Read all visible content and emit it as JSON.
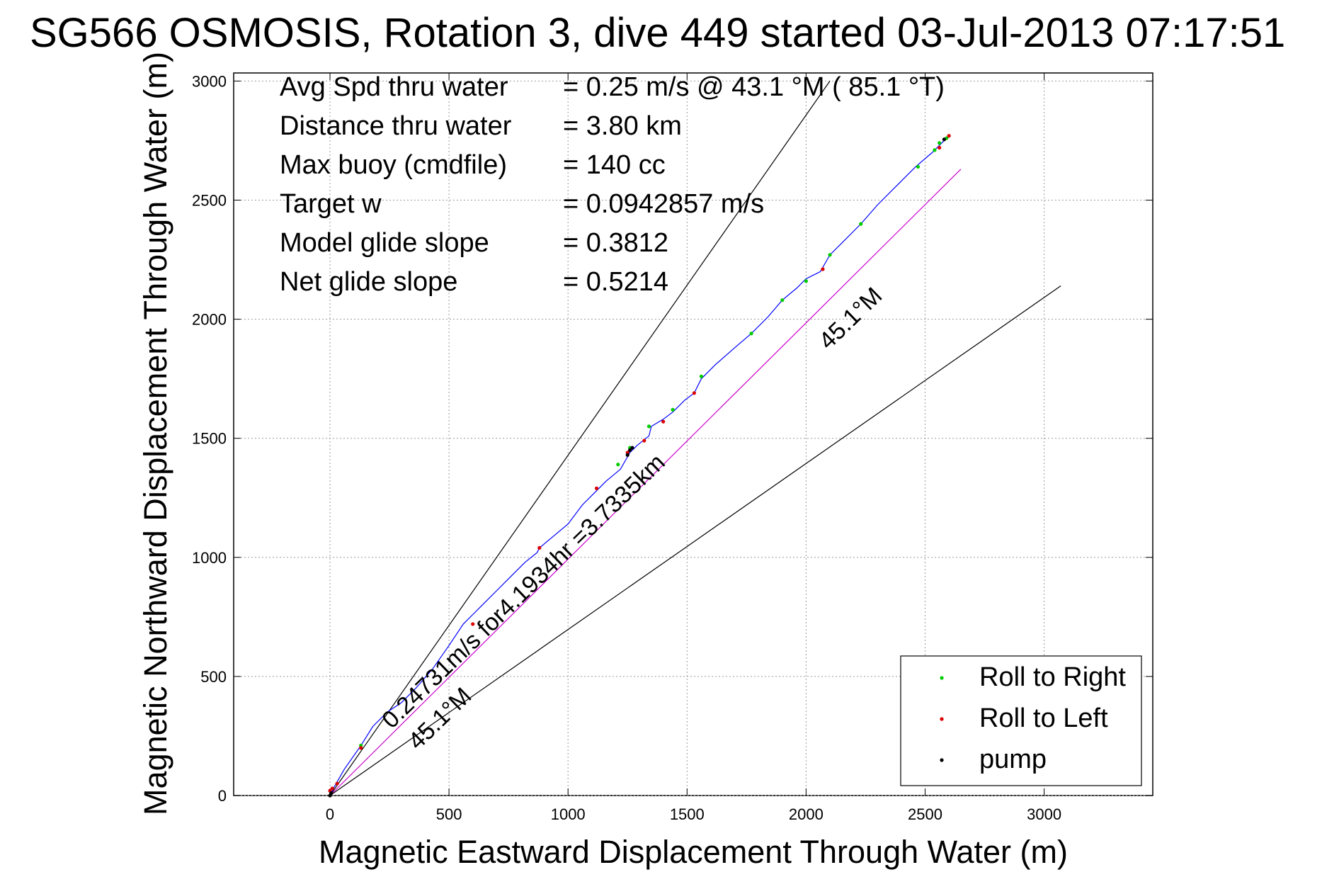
{
  "chart_data": {
    "type": "line",
    "title": "SG566 OSMOSIS, Rotation 3, dive 449 started 03-Jul-2013 07:17:51",
    "xlabel": "Magnetic Eastward Displacement Through Water (m)",
    "ylabel": "Magnetic Northward Displacement Through Water (m)",
    "xlim": [
      -400,
      3450
    ],
    "ylim": [
      0,
      3050
    ],
    "xticks": [
      0,
      500,
      1000,
      1500,
      2000,
      2500,
      3000
    ],
    "yticks": [
      0,
      500,
      1000,
      1500,
      2000,
      2500,
      3000
    ],
    "grid": true,
    "legend_position": "bottom-right",
    "stats": [
      {
        "label": "Avg Spd thru water",
        "value": "=  0.25 m/s @  43.1 °M ( 85.1 °T)"
      },
      {
        "label": "Distance thru water",
        "value": "=  3.80 km"
      },
      {
        "label": "Max buoy (cmdfile)",
        "value": "= 140 cc"
      },
      {
        "label": "Target w",
        "value": "= 0.0942857 m/s"
      },
      {
        "label": "Model glide slope",
        "value": "= 0.3812"
      },
      {
        "label": "Net glide slope",
        "value": "= 0.5214"
      }
    ],
    "annotations": {
      "speed_label": "0.24731m/s for4.1934hr =3.7335km",
      "heading_upper": "45.1°M",
      "heading_lower": "45.1°M"
    },
    "reference_lines": [
      {
        "name": "upper-bound",
        "color": "#000000",
        "x": [
          0,
          2100
        ],
        "y": [
          0,
          3000
        ]
      },
      {
        "name": "lower-bound",
        "color": "#000000",
        "x": [
          0,
          3070
        ],
        "y": [
          0,
          2140
        ]
      },
      {
        "name": "mean-heading",
        "color": "#cc00cc",
        "x": [
          0,
          2650
        ],
        "y": [
          0,
          2630
        ]
      }
    ],
    "track": {
      "color": "#0000ff",
      "x": [
        0,
        20,
        60,
        130,
        180,
        240,
        300,
        360,
        430,
        500,
        560,
        600,
        650,
        700,
        760,
        820,
        870,
        880,
        940,
        1000,
        1060,
        1120,
        1160,
        1220,
        1260,
        1290,
        1340,
        1350,
        1400,
        1440,
        1490,
        1530,
        1560,
        1620,
        1700,
        1770,
        1840,
        1900,
        1960,
        2000,
        2060,
        2100,
        2150,
        2230,
        2300,
        2380,
        2460,
        2530,
        2570,
        2600
      ],
      "y": [
        0,
        40,
        110,
        210,
        290,
        350,
        390,
        450,
        530,
        630,
        720,
        760,
        810,
        860,
        920,
        980,
        1020,
        1040,
        1090,
        1140,
        1220,
        1280,
        1320,
        1370,
        1440,
        1470,
        1510,
        1550,
        1580,
        1610,
        1660,
        1690,
        1750,
        1810,
        1880,
        1940,
        2010,
        2080,
        2130,
        2170,
        2200,
        2270,
        2320,
        2400,
        2480,
        2560,
        2640,
        2700,
        2740,
        2770
      ]
    },
    "series": [
      {
        "name": "Roll to Right",
        "color": "#00cc00",
        "x": [
          130,
          1210,
          1260,
          1340,
          1440,
          1560,
          1770,
          1900,
          2000,
          2100,
          2230,
          2470,
          2540,
          2560,
          2590
        ],
        "y": [
          210,
          1390,
          1460,
          1550,
          1620,
          1760,
          1940,
          2080,
          2160,
          2270,
          2400,
          2640,
          2710,
          2740,
          2760
        ]
      },
      {
        "name": "Roll to Left",
        "color": "#dd0000",
        "x": [
          0,
          10,
          30,
          130,
          600,
          880,
          1120,
          1250,
          1320,
          1400,
          1530,
          2070,
          2560,
          2600
        ],
        "y": [
          20,
          30,
          50,
          200,
          720,
          1040,
          1290,
          1440,
          1490,
          1570,
          1690,
          2210,
          2720,
          2770
        ]
      },
      {
        "name": "pump",
        "color": "#000000",
        "x": [
          0,
          5,
          1250,
          1260,
          1270,
          2580
        ],
        "y": [
          0,
          10,
          1430,
          1450,
          1460,
          2755
        ]
      }
    ]
  }
}
